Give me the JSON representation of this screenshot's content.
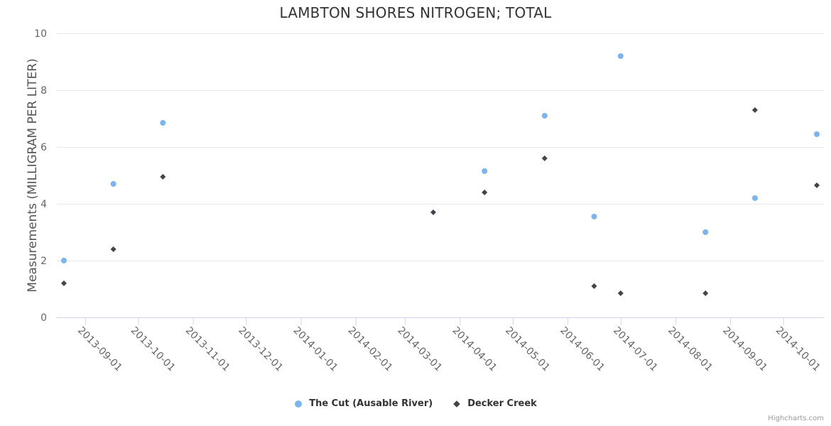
{
  "credits": {
    "label": "Highcharts.com"
  },
  "chart_data": {
    "type": "scatter",
    "title": "LAMBTON SHORES NITROGEN; TOTAL",
    "xlabel": "",
    "ylabel": "Measurements (MILLIGRAM PER LITER)",
    "ylim": [
      0,
      10
    ],
    "yticks": [
      0,
      2,
      4,
      6,
      8,
      10
    ],
    "xlim": [
      "2013-08-16",
      "2014-10-24"
    ],
    "xticks": [
      "2013-09-01",
      "2013-10-01",
      "2013-11-01",
      "2013-12-01",
      "2014-01-01",
      "2014-02-01",
      "2014-03-01",
      "2014-04-01",
      "2014-05-01",
      "2014-06-01",
      "2014-07-01",
      "2014-08-01",
      "2014-09-01",
      "2014-10-01"
    ],
    "grid": "horizontal",
    "legend_position": "bottom-center",
    "series": [
      {
        "name": "The Cut (Ausable River)",
        "marker": "circle",
        "color": "#7cb5ec",
        "points": [
          [
            "2013-08-20",
            2.0
          ],
          [
            "2013-09-17",
            4.7
          ],
          [
            "2013-10-15",
            6.85
          ],
          [
            "2014-04-15",
            5.15
          ],
          [
            "2014-05-19",
            7.1
          ],
          [
            "2014-06-16",
            3.55
          ],
          [
            "2014-07-01",
            9.2
          ],
          [
            "2014-08-18",
            3.0
          ],
          [
            "2014-09-15",
            4.2
          ],
          [
            "2014-10-20",
            6.45
          ]
        ]
      },
      {
        "name": "Decker Creek",
        "marker": "diamond",
        "color": "#434348",
        "points": [
          [
            "2013-08-20",
            1.2
          ],
          [
            "2013-09-17",
            2.4
          ],
          [
            "2013-10-15",
            4.95
          ],
          [
            "2014-03-17",
            3.7
          ],
          [
            "2014-04-15",
            4.4
          ],
          [
            "2014-05-19",
            5.6
          ],
          [
            "2014-06-16",
            1.1
          ],
          [
            "2014-07-01",
            0.85
          ],
          [
            "2014-08-18",
            0.85
          ],
          [
            "2014-09-15",
            7.3
          ],
          [
            "2014-10-20",
            4.65
          ]
        ]
      }
    ],
    "colors": {
      "gridline": "#e6e6e6",
      "axis_line": "#ccd6eb",
      "title_text": "#333333",
      "axis_label_text": "#666666",
      "legend_text": "#333333",
      "credits_text": "#999999"
    }
  }
}
